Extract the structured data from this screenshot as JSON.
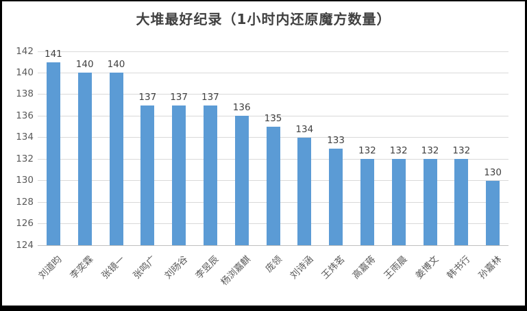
{
  "chart_data": {
    "type": "bar",
    "title": "大堆最好纪录（1小时内还原魔方数量）",
    "categories": [
      "刘道昀",
      "李奕霖",
      "张镜一",
      "张鸣广",
      "刘旸谷",
      "李昱辰",
      "杨浏嘉麒",
      "庞领",
      "刘诗涵",
      "王炜茗",
      "高嘉蒋",
      "王雨晨",
      "姜博文",
      "韩书行",
      "孙嘉林"
    ],
    "values": [
      141,
      140,
      140,
      137,
      137,
      137,
      136,
      135,
      134,
      133,
      132,
      132,
      132,
      132,
      130
    ],
    "xlabel": "",
    "ylabel": "",
    "ylim": [
      124,
      142
    ],
    "ytick_step": 2,
    "ytick_labels": [
      "124",
      "126",
      "128",
      "130",
      "132",
      "134",
      "136",
      "138",
      "140",
      "142"
    ],
    "grid": "horizontal",
    "legend": "none",
    "data_labels": "above bars",
    "colors": {
      "bar": "#5b9bd5",
      "gridline": "#d9d9d9",
      "axis_line": "#bfbfbf",
      "title_text": "#404040",
      "value_label_text": "#404040",
      "tick_label_text": "#595959",
      "frame_border": "#000000",
      "background": "#ffffff"
    }
  }
}
